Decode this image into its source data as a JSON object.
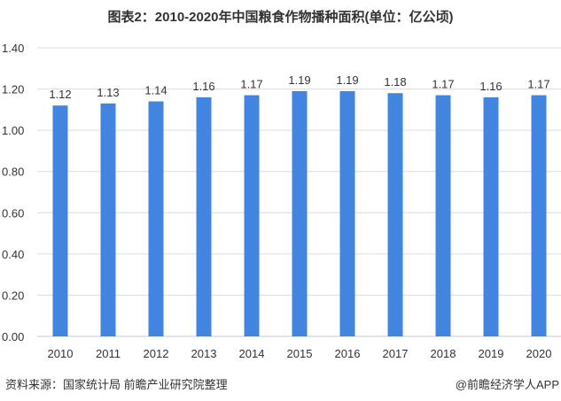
{
  "chart_data": {
    "type": "bar",
    "title": "图表2：2010-2020年中国粮食作物播种面积(单位：亿公顷)",
    "categories": [
      "2010",
      "2011",
      "2012",
      "2013",
      "2014",
      "2015",
      "2016",
      "2017",
      "2018",
      "2019",
      "2020"
    ],
    "values": [
      1.12,
      1.13,
      1.14,
      1.16,
      1.17,
      1.19,
      1.19,
      1.18,
      1.17,
      1.16,
      1.17
    ],
    "ylim": [
      0,
      1.4
    ],
    "yticks": [
      "0.00",
      "0.20",
      "0.40",
      "0.60",
      "0.80",
      "1.00",
      "1.20",
      "1.40"
    ],
    "xlabel": "",
    "ylabel": "",
    "grid": true,
    "bar_color": "#4285e0"
  },
  "footer": {
    "source": "资料来源：国家统计局 前瞻产业研究院整理",
    "brand": "@前瞻经济学人APP"
  }
}
